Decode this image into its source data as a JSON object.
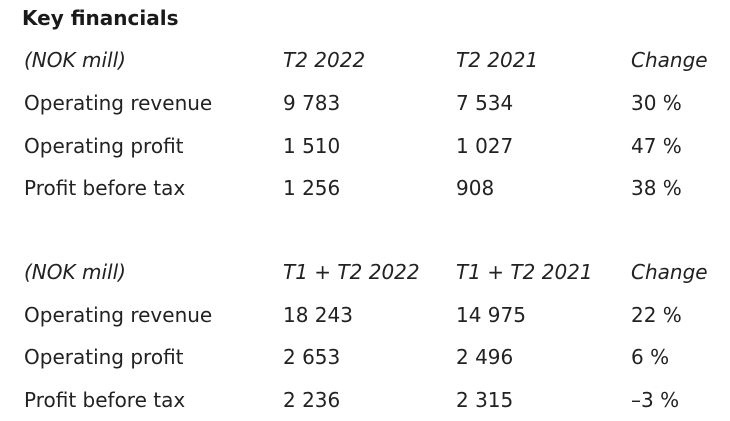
{
  "title": "Key financials",
  "tables": [
    {
      "headers": [
        "(NOK mill)",
        "T2 2022",
        "T2 2021",
        "Change"
      ],
      "rows": [
        [
          "Operating revenue",
          "9 783",
          "7 534",
          "30 %"
        ],
        [
          "Operating profit",
          "1 510",
          "1 027",
          "47 %"
        ],
        [
          "Profit before tax",
          "1 256",
          "908",
          "38 %"
        ]
      ]
    },
    {
      "headers": [
        "(NOK mill)",
        "T1 + T2 2022",
        "T1 + T2 2021",
        "Change"
      ],
      "rows": [
        [
          "Operating revenue",
          "18 243",
          "14 975",
          "22 %"
        ],
        [
          "Operating profit",
          "2 653",
          "2 496",
          "6 %"
        ],
        [
          "Profit before tax",
          "2 236",
          "2 315",
          "–3 %"
        ]
      ]
    }
  ]
}
